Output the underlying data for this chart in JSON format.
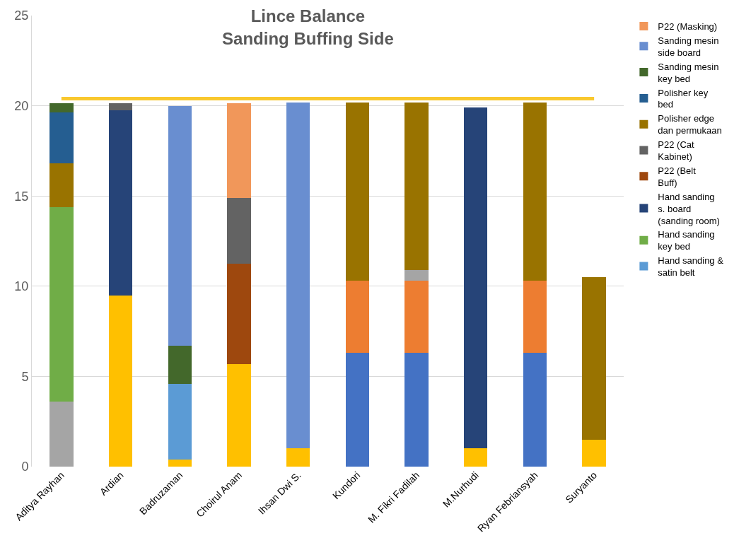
{
  "chart_data": {
    "type": "bar",
    "stacked": true,
    "title": "Lince Balance\nSanding Buffing Side",
    "categories": [
      "Aditya Rayhan",
      "Ardian",
      "Badruzaman",
      "Choirul Anam",
      "Ihsan Dwi S.",
      "Kundori",
      "M. Fikri Fadilah",
      "M.Nurhudi",
      "Ryan Febriansyah",
      "Suryanto"
    ],
    "series": [
      {
        "color": "#ffc000",
        "values": [
          null,
          9.5,
          0.4,
          5.7,
          1.0,
          null,
          null,
          1.0,
          null,
          1.5
        ]
      },
      {
        "color": "#4472c4",
        "values": [
          null,
          null,
          null,
          null,
          null,
          6.3,
          6.3,
          null,
          6.3,
          null
        ]
      },
      {
        "color": "#ed7d31",
        "values": [
          null,
          null,
          null,
          null,
          null,
          4.0,
          4.0,
          null,
          4.0,
          null
        ]
      },
      {
        "color": "#a5a5a5",
        "values": [
          3.6,
          null,
          null,
          null,
          null,
          null,
          0.6,
          null,
          null,
          null
        ]
      },
      {
        "name": "Hand sanding & satin belt",
        "color": "#5b9bd5",
        "values": [
          null,
          null,
          4.2,
          null,
          null,
          null,
          null,
          null,
          null,
          null
        ]
      },
      {
        "name": "Hand sanding key bed",
        "color": "#70ad47",
        "values": [
          10.8,
          null,
          null,
          null,
          null,
          null,
          null,
          null,
          null,
          null
        ]
      },
      {
        "name": "Hand sanding s. board (sanding room)",
        "color": "#264478",
        "values": [
          null,
          10.25,
          null,
          null,
          null,
          null,
          null,
          18.9,
          null,
          null
        ]
      },
      {
        "name": "P22 (Belt Buff)",
        "color": "#9e480e",
        "values": [
          null,
          null,
          null,
          5.55,
          null,
          null,
          null,
          null,
          null,
          null
        ]
      },
      {
        "name": "P22 (Cat Kabinet)",
        "color": "#636363",
        "values": [
          null,
          0.4,
          null,
          3.65,
          null,
          null,
          null,
          null,
          null,
          null
        ]
      },
      {
        "name": "Polisher edge dan permukaan",
        "color": "#997300",
        "values": [
          2.4,
          null,
          null,
          null,
          null,
          9.9,
          9.3,
          null,
          9.9,
          9.0
        ]
      },
      {
        "name": "Polisher key bed",
        "color": "#255e91",
        "values": [
          2.85,
          null,
          null,
          null,
          null,
          null,
          null,
          null,
          null,
          null
        ]
      },
      {
        "name": "Sanding mesin key bed",
        "color": "#43682b",
        "values": [
          0.5,
          null,
          2.1,
          null,
          null,
          null,
          null,
          null,
          null,
          null
        ]
      },
      {
        "name": "Sanding mesin side board",
        "color": "#698ed0",
        "values": [
          null,
          null,
          13.3,
          null,
          19.2,
          null,
          null,
          null,
          null,
          null
        ]
      },
      {
        "name": "P22 (Masking)",
        "color": "#f1975a",
        "values": [
          null,
          null,
          null,
          5.25,
          null,
          null,
          null,
          null,
          null,
          null
        ]
      }
    ],
    "ref_lines": [
      {
        "axis": "y",
        "value": 20.4,
        "color": "#f9c82e"
      }
    ],
    "ylim": [
      0,
      25
    ],
    "yticks": [
      0,
      5,
      10,
      15,
      20,
      25
    ],
    "grid": "y",
    "legend": "right"
  }
}
